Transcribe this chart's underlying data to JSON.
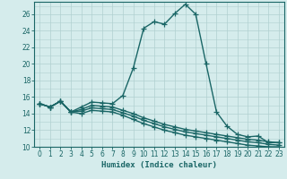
{
  "xlabel": "Humidex (Indice chaleur)",
  "ylabel": "",
  "background_color": "#d5ecec",
  "grid_color": "#b0d0d0",
  "line_color": "#1a6666",
  "xlim": [
    -0.5,
    23.5
  ],
  "ylim": [
    10,
    27.5
  ],
  "yticks": [
    10,
    12,
    14,
    16,
    18,
    20,
    22,
    24,
    26
  ],
  "xticks": [
    0,
    1,
    2,
    3,
    4,
    5,
    6,
    7,
    8,
    9,
    10,
    11,
    12,
    13,
    14,
    15,
    16,
    17,
    18,
    19,
    20,
    21,
    22,
    23
  ],
  "curves": [
    {
      "x": [
        0,
        1,
        2,
        3,
        4,
        5,
        6,
        7,
        8,
        9,
        10,
        11,
        12,
        13,
        14,
        15,
        16,
        17,
        18,
        19,
        20,
        21,
        22,
        23
      ],
      "y": [
        15.2,
        14.8,
        15.5,
        14.2,
        14.8,
        15.4,
        15.3,
        15.2,
        16.2,
        19.5,
        24.3,
        25.1,
        24.8,
        26.1,
        27.2,
        26.0,
        20.0,
        14.2,
        12.5,
        11.5,
        11.2,
        11.3,
        10.5,
        10.5
      ]
    },
    {
      "x": [
        0,
        1,
        2,
        3,
        4,
        5,
        6,
        7,
        8,
        9,
        10,
        11,
        12,
        13,
        14,
        15,
        16,
        17,
        18,
        19,
        20,
        21,
        22,
        23
      ],
      "y": [
        15.2,
        14.8,
        15.5,
        14.2,
        14.5,
        15.0,
        14.9,
        14.8,
        14.4,
        14.0,
        13.5,
        13.1,
        12.7,
        12.4,
        12.1,
        11.9,
        11.7,
        11.5,
        11.3,
        11.1,
        10.9,
        10.8,
        10.6,
        10.5
      ]
    },
    {
      "x": [
        0,
        1,
        2,
        3,
        4,
        5,
        6,
        7,
        8,
        9,
        10,
        11,
        12,
        13,
        14,
        15,
        16,
        17,
        18,
        19,
        20,
        21,
        22,
        23
      ],
      "y": [
        15.2,
        14.8,
        15.5,
        14.2,
        14.3,
        14.7,
        14.6,
        14.5,
        14.1,
        13.7,
        13.2,
        12.8,
        12.4,
        12.1,
        11.8,
        11.6,
        11.4,
        11.2,
        11.0,
        10.8,
        10.6,
        10.5,
        10.3,
        10.2
      ]
    },
    {
      "x": [
        0,
        1,
        2,
        3,
        4,
        5,
        6,
        7,
        8,
        9,
        10,
        11,
        12,
        13,
        14,
        15,
        16,
        17,
        18,
        19,
        20,
        21,
        22,
        23
      ],
      "y": [
        15.2,
        14.8,
        15.5,
        14.2,
        14.0,
        14.4,
        14.3,
        14.2,
        13.8,
        13.3,
        12.8,
        12.4,
        12.0,
        11.7,
        11.4,
        11.2,
        11.0,
        10.8,
        10.6,
        10.4,
        10.2,
        10.1,
        10.0,
        10.0
      ]
    }
  ],
  "marker": "+",
  "marker_size": 4,
  "linewidth": 1.0
}
